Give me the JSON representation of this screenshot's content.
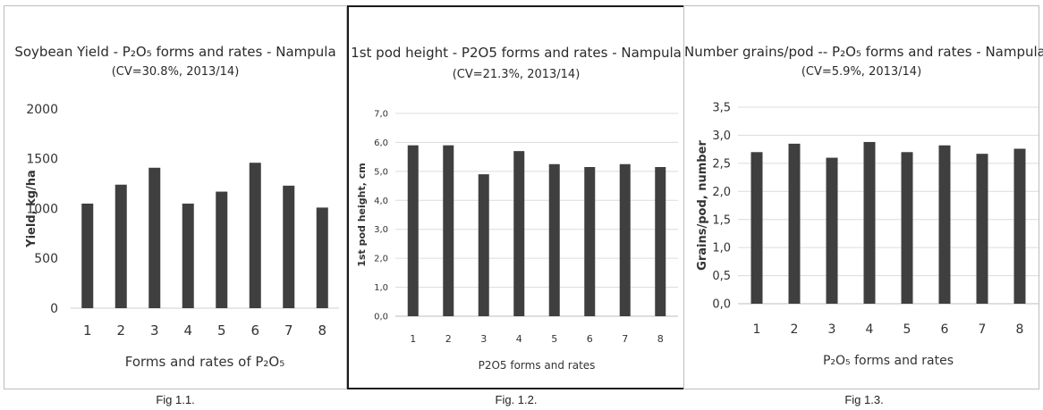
{
  "chart_data": [
    {
      "type": "bar",
      "title": "Soybean Yield - P₂O₅ forms and rates - Nampula",
      "subtitle": "(CV=30.8%, 2013/14)",
      "xlabel": "Forms and rates of P₂O₅",
      "ylabel": "Yield, kg/ha",
      "categories": [
        "1",
        "2",
        "3",
        "4",
        "5",
        "6",
        "7",
        "8"
      ],
      "values": [
        1050,
        1240,
        1410,
        1050,
        1170,
        1460,
        1230,
        1010
      ],
      "ylim": [
        0,
        2000
      ],
      "yticks": [
        "0",
        "500",
        "1000",
        "1500",
        "2000"
      ],
      "grid": false,
      "bar_color": "#3f3f3f",
      "caption": "Fig 1.1."
    },
    {
      "type": "bar",
      "title": "1st pod height - P2O5 forms and rates - Nampula",
      "subtitle": "(CV=21.3%, 2013/14)",
      "xlabel": "P2O5 forms and rates",
      "ylabel": "1st pod height, cm",
      "categories": [
        "1",
        "2",
        "3",
        "4",
        "5",
        "6",
        "7",
        "8"
      ],
      "values": [
        5.9,
        5.9,
        4.9,
        5.7,
        5.25,
        5.15,
        5.25,
        5.15
      ],
      "ylim": [
        0,
        7
      ],
      "yticks": [
        "0,0",
        "1,0",
        "2,0",
        "3,0",
        "4,0",
        "5,0",
        "6,0",
        "7,0"
      ],
      "grid": true,
      "bar_color": "#3f3f3f",
      "caption": "Fig. 1.2."
    },
    {
      "type": "bar",
      "title": "Number grains/pod -- P₂O₅ forms and rates - Nampula",
      "subtitle": "(CV=5.9%, 2013/14)",
      "xlabel": "P₂O₅ forms and rates",
      "ylabel": "Grains/pod, number",
      "categories": [
        "1",
        "2",
        "3",
        "4",
        "5",
        "6",
        "7",
        "8"
      ],
      "values": [
        2.7,
        2.85,
        2.6,
        2.88,
        2.7,
        2.82,
        2.67,
        2.76
      ],
      "ylim": [
        0,
        3.5
      ],
      "yticks": [
        "0,0",
        "0,5",
        "1,0",
        "1,5",
        "2,0",
        "2,5",
        "3,0",
        "3,5"
      ],
      "grid": true,
      "bar_color": "#3f3f3f",
      "caption": "Fig 1.3."
    }
  ]
}
